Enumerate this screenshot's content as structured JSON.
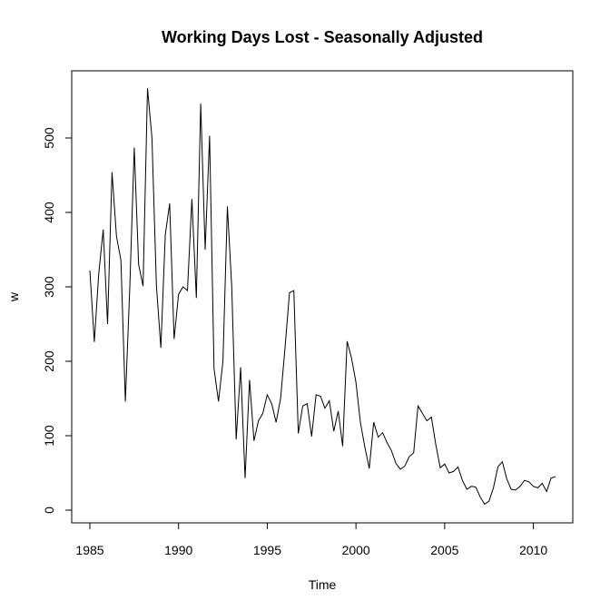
{
  "chart_data": {
    "type": "line",
    "title": "Working Days Lost - Seasonally Adjusted",
    "xlabel": "Time",
    "ylabel": "w",
    "xlim": [
      1985,
      2011.25
    ],
    "ylim": [
      0,
      575
    ],
    "x_ticks": [
      1985,
      1990,
      1995,
      2000,
      2005,
      2010
    ],
    "x_tick_labels": [
      "1985",
      "1990",
      "1995",
      "2000",
      "2005",
      "2010"
    ],
    "y_ticks": [
      0,
      100,
      200,
      300,
      400,
      500
    ],
    "y_tick_labels": [
      "0",
      "100",
      "200",
      "300",
      "400",
      "500"
    ],
    "grid": false,
    "legend": "none",
    "frequency": "quarterly",
    "start": 1985,
    "series": [
      {
        "values": [
          322,
          226,
          318,
          377,
          250,
          454,
          368,
          336,
          146,
          300,
          487,
          330,
          301,
          567,
          500,
          302,
          218,
          370,
          412,
          230,
          290,
          300,
          295,
          418,
          285,
          546,
          350,
          503,
          190,
          146,
          200,
          408,
          300,
          95,
          192,
          43,
          175,
          93,
          120,
          130,
          155,
          143,
          118,
          150,
          218,
          292,
          295,
          103,
          140,
          143,
          99,
          155,
          153,
          137,
          147,
          106,
          133,
          86,
          227,
          204,
          172,
          118,
          85,
          56,
          118,
          98,
          104,
          91,
          80,
          63,
          55,
          59,
          72,
          77,
          140,
          130,
          120,
          125,
          88,
          57,
          62,
          50,
          52,
          58,
          40,
          28,
          32,
          31,
          18,
          8,
          12,
          30,
          58,
          65,
          42,
          28,
          27,
          32,
          40,
          38,
          32,
          30,
          36,
          25,
          43,
          45
        ]
      }
    ]
  }
}
